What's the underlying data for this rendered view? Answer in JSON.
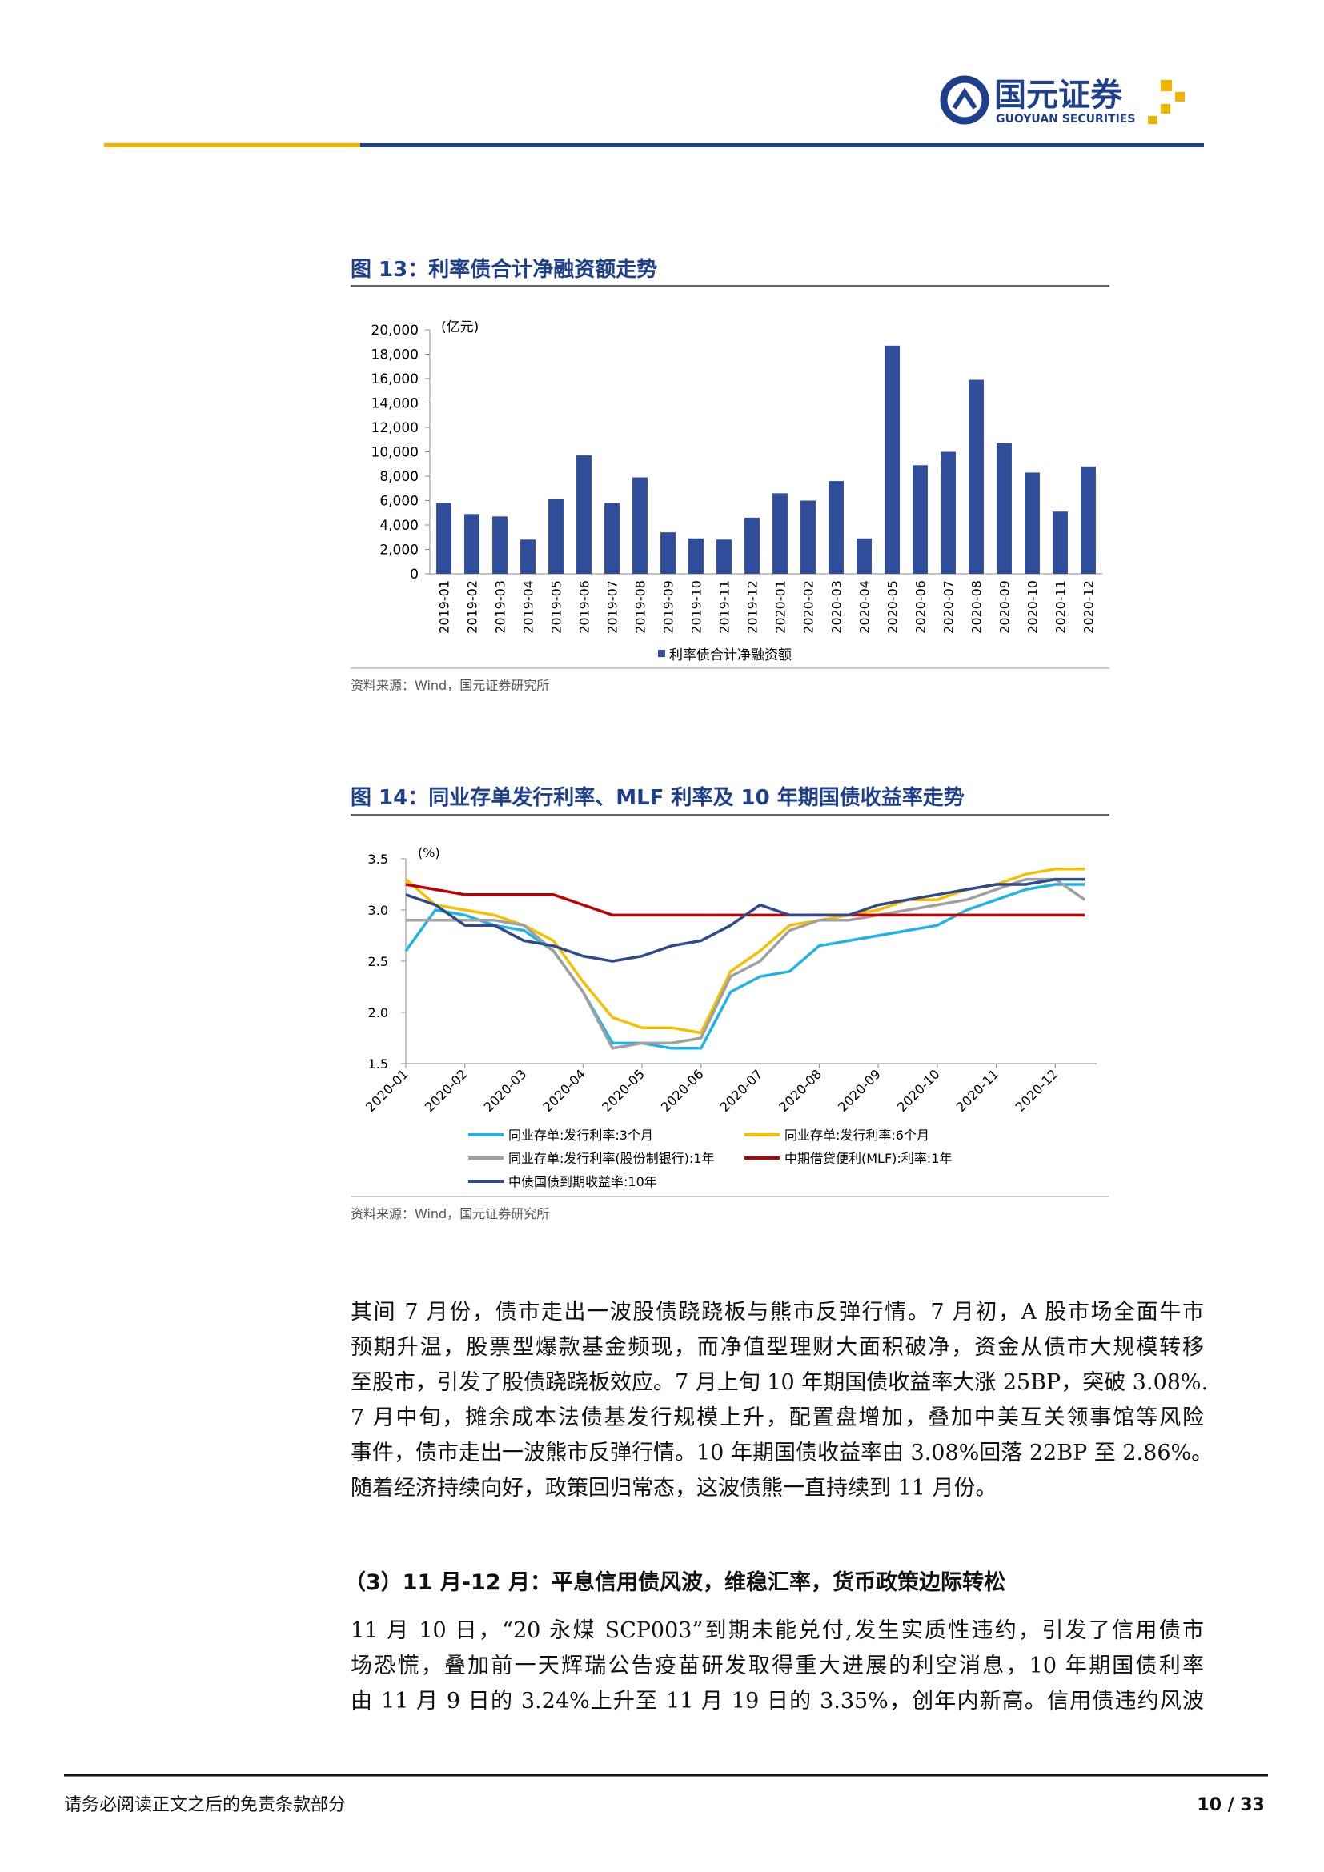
{
  "header": {
    "company": "国元证券",
    "company_en": "GUOYUAN SECURITIES"
  },
  "chart_data": [
    {
      "type": "bar",
      "title": "图 13：利率债合计净融资额走势",
      "unit_label": "(亿元)",
      "source": "资料来源：Wind，国元证券研究所",
      "categories": [
        "2019-01",
        "2019-02",
        "2019-03",
        "2019-04",
        "2019-05",
        "2019-06",
        "2019-07",
        "2019-08",
        "2019-09",
        "2019-10",
        "2019-11",
        "2019-12",
        "2020-01",
        "2020-02",
        "2020-03",
        "2020-04",
        "2020-05",
        "2020-06",
        "2020-07",
        "2020-08",
        "2020-09",
        "2020-10",
        "2020-11",
        "2020-12"
      ],
      "series": [
        {
          "name": "利率债合计净融资额",
          "color": "#2f4d9a",
          "values": [
            5800,
            4900,
            4700,
            2800,
            6100,
            9700,
            5800,
            7900,
            3400,
            2900,
            2800,
            4600,
            6600,
            6000,
            7600,
            2900,
            18700,
            8900,
            10000,
            15900,
            10700,
            8300,
            5100,
            8800
          ]
        }
      ],
      "ylim": [
        0,
        20000
      ],
      "yticks": [
        0,
        {
          "value": 2000,
          "label": "2,000"
        },
        {
          "value": 4000,
          "label": "4,000"
        },
        {
          "value": 6000,
          "label": "6,000"
        },
        {
          "value": 8000,
          "label": "8,000"
        },
        {
          "value": 10000,
          "label": "10,000"
        },
        {
          "value": 12000,
          "label": "12,000"
        },
        {
          "value": 14000,
          "label": "14,000"
        },
        {
          "value": 16000,
          "label": "16,000"
        },
        {
          "value": 18000,
          "label": "18,000"
        },
        {
          "value": 20000,
          "label": "20,000"
        }
      ]
    },
    {
      "type": "line",
      "title": "图 14：同业存单发行利率、MLF 利率及 10 年期国债收益率走势",
      "unit_label": "(%)",
      "source": "资料来源：Wind，国元证券研究所",
      "x": [
        0,
        0.5,
        1,
        1.5,
        2,
        2.5,
        3,
        3.5,
        4,
        4.5,
        5,
        5.5,
        6,
        6.5,
        7,
        7.5,
        8,
        8.5,
        9,
        9.5,
        10,
        10.5,
        11,
        11.5
      ],
      "xlim": [
        0,
        11.7
      ],
      "xticks": [
        {
          "value": 0,
          "label": "2020-01"
        },
        {
          "value": 1,
          "label": "2020-02"
        },
        {
          "value": 2,
          "label": "2020-03"
        },
        {
          "value": 3,
          "label": "2020-04"
        },
        {
          "value": 4,
          "label": "2020-05"
        },
        {
          "value": 5,
          "label": "2020-06"
        },
        {
          "value": 6,
          "label": "2020-07"
        },
        {
          "value": 7,
          "label": "2020-08"
        },
        {
          "value": 8,
          "label": "2020-09"
        },
        {
          "value": 9,
          "label": "2020-10"
        },
        {
          "value": 10,
          "label": "2020-11"
        },
        {
          "value": 11,
          "label": "2020-12"
        }
      ],
      "ylim": [
        1.5,
        3.5
      ],
      "yticks": [
        1.5,
        {
          "value": 2,
          "label": "2.0"
        },
        2.5,
        {
          "value": 3,
          "label": "3.0"
        },
        3.5
      ],
      "series": [
        {
          "name": "同业存单:发行利率:3个月",
          "color": "#1eb4e6",
          "values": [
            2.6,
            3.0,
            2.95,
            2.85,
            2.8,
            2.6,
            2.2,
            1.7,
            1.7,
            1.65,
            1.65,
            2.2,
            2.35,
            2.4,
            2.65,
            2.7,
            2.75,
            2.8,
            2.85,
            3.0,
            3.1,
            3.2,
            3.25,
            3.25
          ]
        },
        {
          "name": "同业存单:发行利率:6个月",
          "color": "#f5c000",
          "values": [
            3.3,
            3.05,
            3.0,
            2.95,
            2.85,
            2.7,
            2.3,
            1.95,
            1.85,
            1.85,
            1.8,
            2.4,
            2.6,
            2.85,
            2.9,
            2.95,
            3.0,
            3.1,
            3.1,
            3.2,
            3.25,
            3.35,
            3.4,
            3.4
          ]
        },
        {
          "name": "同业存单:发行利率(股份制银行):1年",
          "color": "#a0a0a0",
          "values": [
            2.9,
            2.9,
            2.9,
            2.9,
            2.85,
            2.6,
            2.2,
            1.65,
            1.7,
            1.7,
            1.75,
            2.35,
            2.5,
            2.8,
            2.9,
            2.9,
            2.95,
            3.0,
            3.05,
            3.1,
            3.2,
            3.3,
            3.3,
            3.1
          ]
        },
        {
          "name": "中期借贷便利(MLF):利率:1年",
          "color": "#c00000",
          "values": [
            3.25,
            3.2,
            3.15,
            3.15,
            3.15,
            3.15,
            3.05,
            2.95,
            2.95,
            2.95,
            2.95,
            2.95,
            2.95,
            2.95,
            2.95,
            2.95,
            2.95,
            2.95,
            2.95,
            2.95,
            2.95,
            2.95,
            2.95,
            2.95
          ]
        },
        {
          "name": "中债国债到期收益率:10年",
          "color": "#2e4a8c",
          "values": [
            3.15,
            3.05,
            2.85,
            2.85,
            2.7,
            2.65,
            2.55,
            2.5,
            2.55,
            2.65,
            2.7,
            2.85,
            3.05,
            2.95,
            2.95,
            2.95,
            3.05,
            3.1,
            3.15,
            3.2,
            3.25,
            3.25,
            3.3,
            3.3
          ]
        }
      ]
    }
  ],
  "paragraphs": [
    [
      "其间 7 月份，债市走出一波股债跷跷板与熊市反弹行情。7 月初，A 股市场全面牛市",
      "预期升温，股票型爆款基金频现，而净值型理财大面积破净，资金从债市大规模转移",
      "至股市，引发了股债跷跷板效应。7 月上旬 10 年期国债收益率大涨 25BP，突破 3.08%.",
      "7 月中旬，摊余成本法债基发行规模上升，配置盘增加，叠加中美互关领事馆等风险",
      "事件，债市走出一波熊市反弹行情。10 年期国债收益率由 3.08%回落 22BP 至 2.86%。",
      "随着经济持续向好，政策回归常态，这波债熊一直持续到 11 月份。"
    ],
    [
      "11 月 10 日，“20 永煤 SCP003”到期未能兑付,发生实质性违约，引发了信用债市",
      "场恐慌，叠加前一天辉瑞公告疫苗研发取得重大进展的利空消息，10 年期国债利率",
      "由 11 月 9 日的 3.24%上升至 11 月 19 日的 3.35%，创年内新高。信用债违约风波"
    ]
  ],
  "subheading": "（3）11 月-12 月：平息信用债风波，维稳汇率，货币政策边际转松",
  "footer": {
    "disclaimer": "请务必阅读正文之后的免责条款部分",
    "page": "10 / 33"
  }
}
